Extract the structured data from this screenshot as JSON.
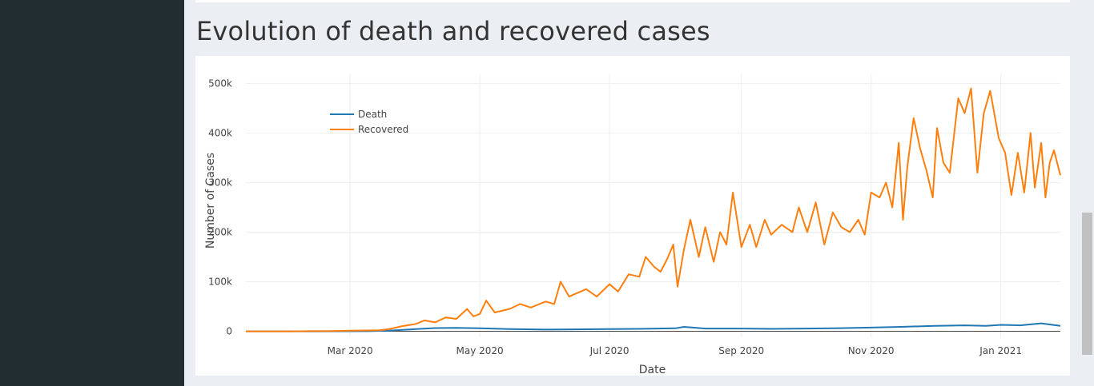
{
  "page": {
    "title": "Evolution of death and recovered cases"
  },
  "colors": {
    "death": "#1f77b4",
    "recovered": "#ff7f0e",
    "sidebar": "#222d32",
    "background": "#ebeef2"
  },
  "chart_data": {
    "type": "line",
    "title": "",
    "xlabel": "Date",
    "ylabel": "Number of Cases",
    "x_range": [
      "2020-01-12",
      "2021-01-29"
    ],
    "ylim": [
      -12000,
      520000
    ],
    "x_ticks": [
      {
        "date": "2020-03-01",
        "label": "Mar 2020"
      },
      {
        "date": "2020-05-01",
        "label": "May 2020"
      },
      {
        "date": "2020-07-01",
        "label": "Jul 2020"
      },
      {
        "date": "2020-09-01",
        "label": "Sep 2020"
      },
      {
        "date": "2020-11-01",
        "label": "Nov 2020"
      },
      {
        "date": "2021-01-01",
        "label": "Jan 2021"
      }
    ],
    "y_ticks": [
      {
        "value": 0,
        "label": "0"
      },
      {
        "value": 100000,
        "label": "100k"
      },
      {
        "value": 200000,
        "label": "200k"
      },
      {
        "value": 300000,
        "label": "300k"
      },
      {
        "value": 400000,
        "label": "400k"
      },
      {
        "value": 500000,
        "label": "500k"
      }
    ],
    "grid": true,
    "legend_position": "top-left",
    "series": [
      {
        "name": "Death",
        "color": "#1f77b4",
        "points": [
          [
            "2020-01-12",
            0
          ],
          [
            "2020-02-15",
            0
          ],
          [
            "2020-03-10",
            200
          ],
          [
            "2020-03-20",
            1500
          ],
          [
            "2020-04-01",
            4500
          ],
          [
            "2020-04-10",
            6500
          ],
          [
            "2020-04-20",
            7000
          ],
          [
            "2020-05-01",
            6000
          ],
          [
            "2020-05-15",
            4500
          ],
          [
            "2020-06-01",
            3500
          ],
          [
            "2020-06-15",
            4000
          ],
          [
            "2020-07-01",
            4500
          ],
          [
            "2020-07-15",
            5000
          ],
          [
            "2020-08-01",
            6000
          ],
          [
            "2020-08-05",
            9000
          ],
          [
            "2020-08-15",
            5500
          ],
          [
            "2020-09-01",
            5500
          ],
          [
            "2020-09-15",
            5000
          ],
          [
            "2020-10-01",
            5500
          ],
          [
            "2020-10-15",
            6000
          ],
          [
            "2020-11-01",
            7500
          ],
          [
            "2020-11-15",
            9000
          ],
          [
            "2020-12-01",
            11000
          ],
          [
            "2020-12-15",
            12000
          ],
          [
            "2020-12-25",
            11000
          ],
          [
            "2021-01-01",
            13000
          ],
          [
            "2021-01-10",
            12000
          ],
          [
            "2021-01-20",
            16000
          ],
          [
            "2021-01-29",
            11000
          ]
        ]
      },
      {
        "name": "Recovered",
        "color": "#ff7f0e",
        "points": [
          [
            "2020-01-12",
            0
          ],
          [
            "2020-02-01",
            0
          ],
          [
            "2020-02-20",
            500
          ],
          [
            "2020-03-05",
            1500
          ],
          [
            "2020-03-15",
            2000
          ],
          [
            "2020-03-20",
            5000
          ],
          [
            "2020-03-25",
            10000
          ],
          [
            "2020-04-01",
            15000
          ],
          [
            "2020-04-05",
            22000
          ],
          [
            "2020-04-10",
            18000
          ],
          [
            "2020-04-15",
            28000
          ],
          [
            "2020-04-20",
            25000
          ],
          [
            "2020-04-25",
            45000
          ],
          [
            "2020-04-28",
            30000
          ],
          [
            "2020-05-01",
            35000
          ],
          [
            "2020-05-04",
            62000
          ],
          [
            "2020-05-08",
            38000
          ],
          [
            "2020-05-15",
            45000
          ],
          [
            "2020-05-20",
            55000
          ],
          [
            "2020-05-25",
            48000
          ],
          [
            "2020-06-01",
            60000
          ],
          [
            "2020-06-05",
            55000
          ],
          [
            "2020-06-08",
            100000
          ],
          [
            "2020-06-12",
            70000
          ],
          [
            "2020-06-20",
            85000
          ],
          [
            "2020-06-25",
            70000
          ],
          [
            "2020-07-01",
            95000
          ],
          [
            "2020-07-05",
            80000
          ],
          [
            "2020-07-10",
            115000
          ],
          [
            "2020-07-15",
            110000
          ],
          [
            "2020-07-18",
            150000
          ],
          [
            "2020-07-22",
            130000
          ],
          [
            "2020-07-25",
            120000
          ],
          [
            "2020-07-28",
            145000
          ],
          [
            "2020-07-31",
            175000
          ],
          [
            "2020-08-02",
            90000
          ],
          [
            "2020-08-05",
            165000
          ],
          [
            "2020-08-08",
            225000
          ],
          [
            "2020-08-12",
            150000
          ],
          [
            "2020-08-15",
            210000
          ],
          [
            "2020-08-19",
            140000
          ],
          [
            "2020-08-22",
            200000
          ],
          [
            "2020-08-25",
            175000
          ],
          [
            "2020-08-28",
            280000
          ],
          [
            "2020-09-01",
            170000
          ],
          [
            "2020-09-05",
            215000
          ],
          [
            "2020-09-08",
            170000
          ],
          [
            "2020-09-12",
            225000
          ],
          [
            "2020-09-15",
            195000
          ],
          [
            "2020-09-20",
            215000
          ],
          [
            "2020-09-25",
            200000
          ],
          [
            "2020-09-28",
            250000
          ],
          [
            "2020-10-02",
            200000
          ],
          [
            "2020-10-06",
            260000
          ],
          [
            "2020-10-10",
            175000
          ],
          [
            "2020-10-14",
            240000
          ],
          [
            "2020-10-18",
            210000
          ],
          [
            "2020-10-22",
            200000
          ],
          [
            "2020-10-26",
            225000
          ],
          [
            "2020-10-29",
            195000
          ],
          [
            "2020-11-01",
            280000
          ],
          [
            "2020-11-05",
            270000
          ],
          [
            "2020-11-08",
            300000
          ],
          [
            "2020-11-11",
            250000
          ],
          [
            "2020-11-14",
            380000
          ],
          [
            "2020-11-16",
            225000
          ],
          [
            "2020-11-18",
            330000
          ],
          [
            "2020-11-21",
            430000
          ],
          [
            "2020-11-24",
            370000
          ],
          [
            "2020-11-27",
            325000
          ],
          [
            "2020-11-30",
            270000
          ],
          [
            "2020-12-02",
            410000
          ],
          [
            "2020-12-05",
            340000
          ],
          [
            "2020-12-08",
            320000
          ],
          [
            "2020-12-12",
            470000
          ],
          [
            "2020-12-15",
            440000
          ],
          [
            "2020-12-18",
            490000
          ],
          [
            "2020-12-21",
            320000
          ],
          [
            "2020-12-24",
            440000
          ],
          [
            "2020-12-27",
            485000
          ],
          [
            "2020-12-31",
            390000
          ],
          [
            "2021-01-03",
            360000
          ],
          [
            "2021-01-06",
            275000
          ],
          [
            "2021-01-09",
            360000
          ],
          [
            "2021-01-12",
            280000
          ],
          [
            "2021-01-15",
            400000
          ],
          [
            "2021-01-17",
            290000
          ],
          [
            "2021-01-20",
            380000
          ],
          [
            "2021-01-22",
            270000
          ],
          [
            "2021-01-24",
            340000
          ],
          [
            "2021-01-26",
            365000
          ],
          [
            "2021-01-29",
            315000
          ]
        ]
      }
    ]
  }
}
